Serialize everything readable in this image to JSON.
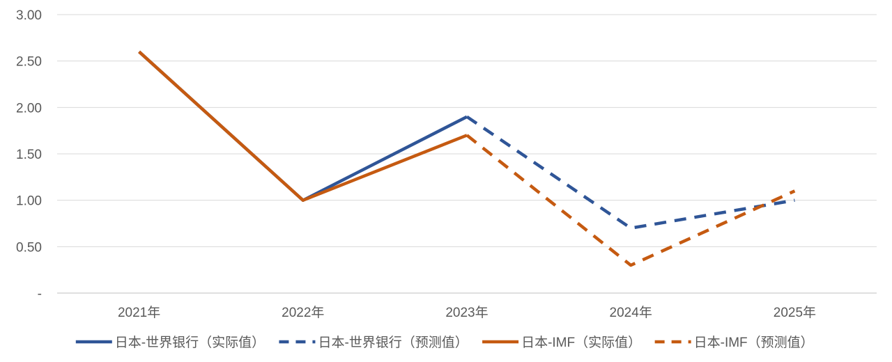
{
  "chart_data": {
    "type": "line",
    "categories": [
      "2021年",
      "2022年",
      "2023年",
      "2024年",
      "2025年"
    ],
    "y_tick_labels": [
      "-",
      "0.50",
      "1.00",
      "1.50",
      "2.00",
      "2.50",
      "3.00"
    ],
    "ylim": [
      0,
      3
    ],
    "grid": true,
    "legend_position": "bottom",
    "series": [
      {
        "name": "日本-世界银行（实际值）",
        "values": [
          2.6,
          1.0,
          1.9,
          null,
          null
        ],
        "color": "#2f5597",
        "dashed": false
      },
      {
        "name": "日本-世界银行（预测值）",
        "values": [
          null,
          null,
          1.9,
          0.7,
          1.0
        ],
        "color": "#2f5597",
        "dashed": true
      },
      {
        "name": "日本-IMF（实际值）",
        "values": [
          2.6,
          1.0,
          1.7,
          null,
          null
        ],
        "color": "#c55a11",
        "dashed": false
      },
      {
        "name": "日本-IMF（预测值）",
        "values": [
          null,
          null,
          1.7,
          0.3,
          1.1
        ],
        "color": "#c55a11",
        "dashed": true
      }
    ]
  }
}
